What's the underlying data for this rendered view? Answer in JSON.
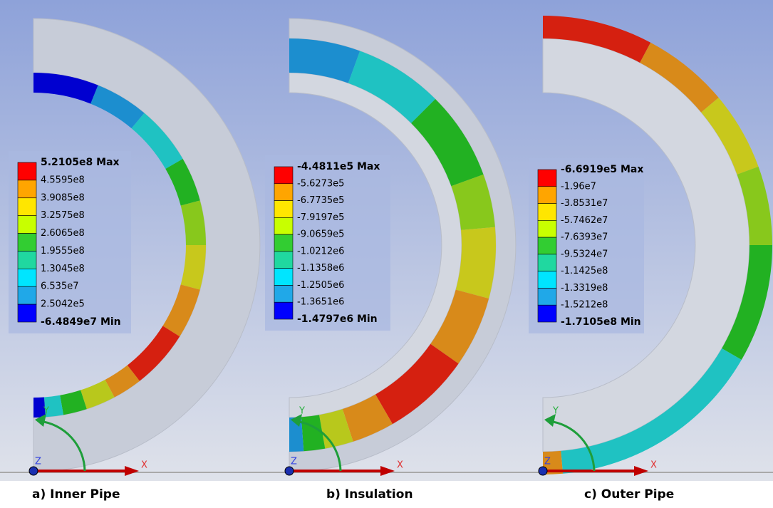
{
  "panels": [
    {
      "caption": "a) Inner Pipe",
      "legend": [
        "5.2105e8 Max",
        "4.5595e8",
        "3.9085e8",
        "3.2575e8",
        "2.6065e8",
        "1.9555e8",
        "1.3045e8",
        "6.535e7",
        "2.5042e5",
        "-6.4849e7 Min"
      ],
      "axes": {
        "x": "X",
        "y": "Y",
        "z": "Z"
      }
    },
    {
      "caption": "b) Insulation",
      "legend": [
        "-4.4811e5 Max",
        "-5.6273e5",
        "-6.7735e5",
        "-7.9197e5",
        "-9.0659e5",
        "-1.0212e6",
        "-1.1358e6",
        "-1.2505e6",
        "-1.3651e6",
        "-1.4797e6 Min"
      ],
      "axes": {
        "x": "X",
        "y": "Y",
        "z": "Z"
      }
    },
    {
      "caption": "c) Outer Pipe",
      "legend": [
        "-6.6919e5 Max",
        "-1.96e7",
        "-3.8531e7",
        "-5.7462e7",
        "-7.6393e7",
        "-9.5324e7",
        "-1.1425e8",
        "-1.3319e8",
        "-1.5212e8",
        "-1.7105e8 Min"
      ],
      "axes": {
        "x": "X",
        "y": "Y",
        "z": "Z"
      }
    }
  ]
}
